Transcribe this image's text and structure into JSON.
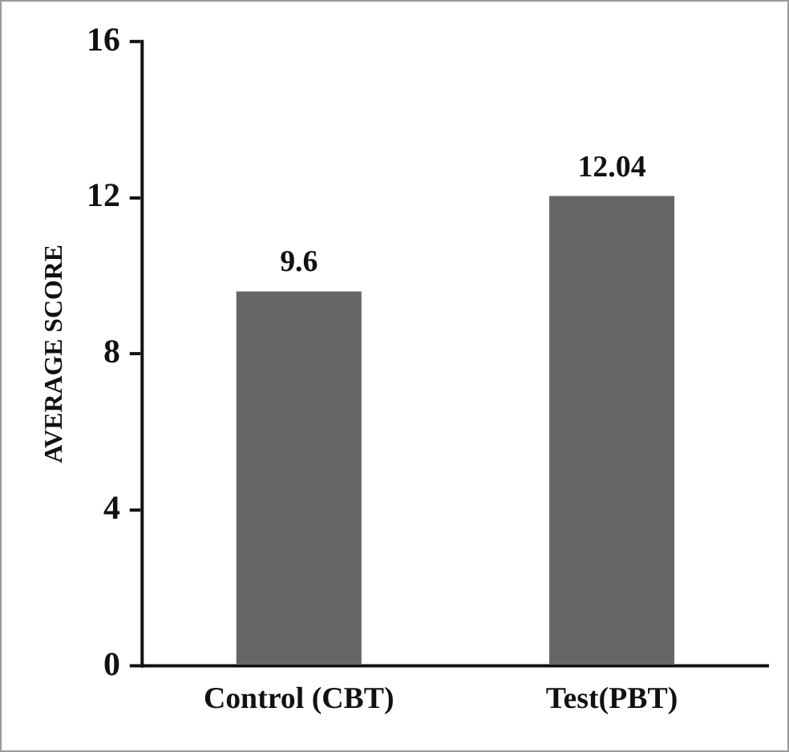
{
  "chart_data": {
    "type": "bar",
    "ylabel": "AVERAGE SCORE",
    "categories": [
      "Control (CBT)",
      "Test(PBT)"
    ],
    "values": [
      9.6,
      12.04
    ],
    "color": "#666666",
    "ylim": [
      0,
      16
    ],
    "yticks": [
      0,
      4,
      8,
      12,
      16
    ],
    "grid": false,
    "data_labels": true
  }
}
